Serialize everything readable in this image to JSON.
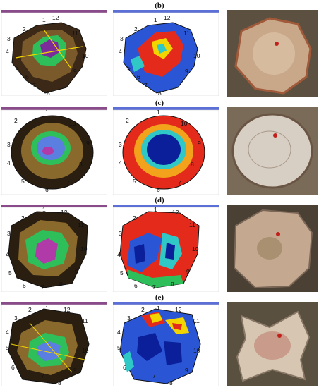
{
  "panels": [
    {
      "label": "(b)",
      "numbers": [
        "1",
        "2",
        "3",
        "4",
        "5",
        "6",
        "7",
        "8",
        "9",
        "10",
        "11",
        "12"
      ]
    },
    {
      "label": "(c)",
      "numbers": [
        "1",
        "2",
        "3",
        "4",
        "5",
        "6",
        "7",
        "8",
        "9",
        "10"
      ]
    },
    {
      "label": "(d)",
      "numbers": [
        "1",
        "2",
        "3",
        "4",
        "5",
        "6",
        "7",
        "8",
        "9",
        "10",
        "11",
        "12"
      ]
    },
    {
      "label": "(e)",
      "numbers": [
        "1",
        "2",
        "3",
        "4",
        "5",
        "6",
        "7",
        "8",
        "9",
        "10",
        "11",
        "12"
      ]
    }
  ]
}
